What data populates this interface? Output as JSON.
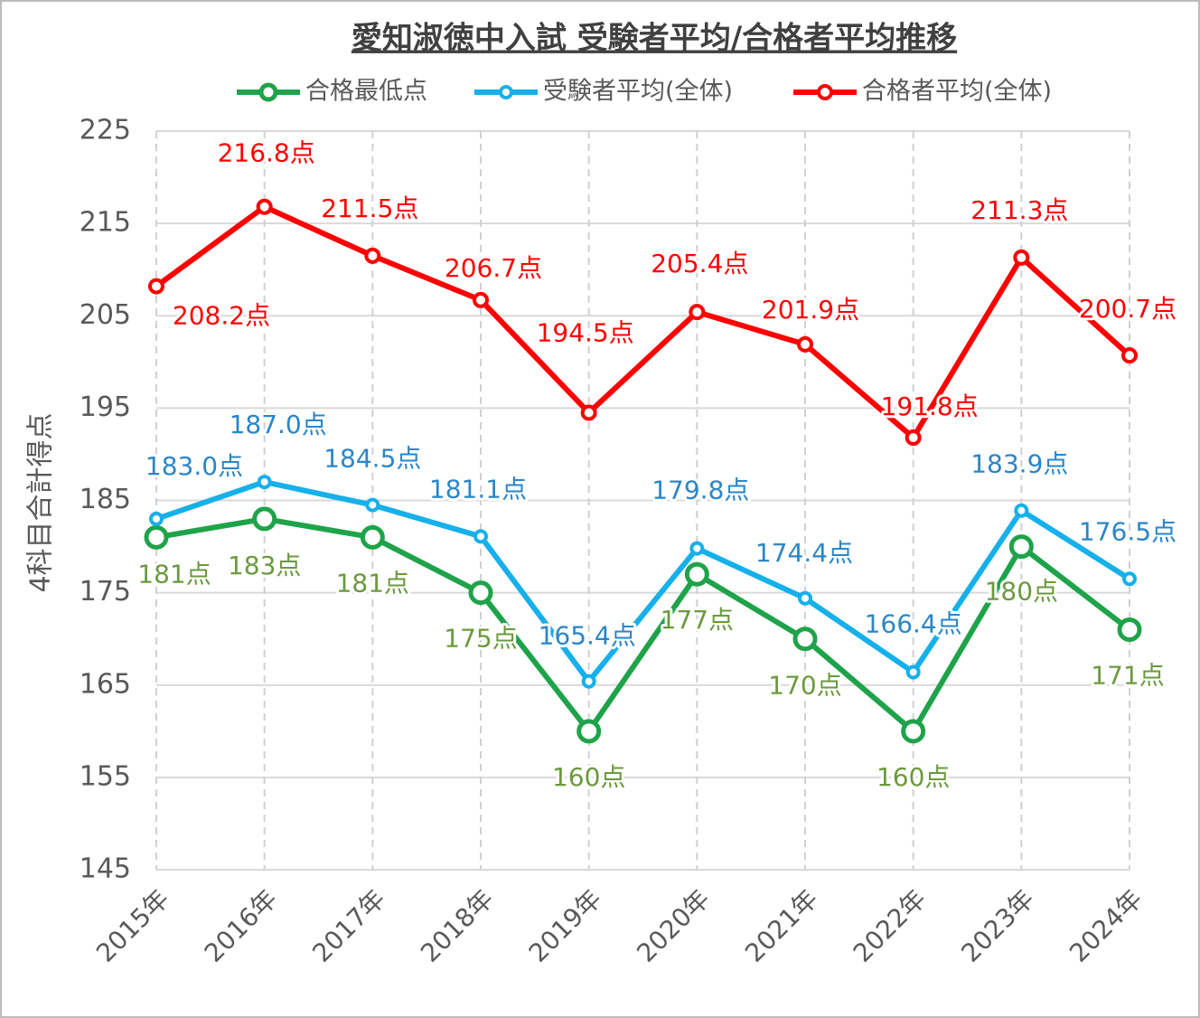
{
  "chart_data": {
    "type": "line",
    "title": "愛知淑徳中入試 受験者平均/合格者平均推移",
    "y_label": "4科目合計得点",
    "categories": [
      "2015年",
      "2016年",
      "2017年",
      "2018年",
      "2019年",
      "2020年",
      "2021年",
      "2022年",
      "2023年",
      "2024年"
    ],
    "ylim": [
      145,
      225
    ],
    "yticks": [
      145,
      155,
      165,
      175,
      185,
      195,
      205,
      215,
      225
    ],
    "grid": true,
    "legend": "top",
    "series": [
      {
        "name": "合格最低点",
        "color": "#1fa34a",
        "label_color": "#6b9a3e",
        "values": [
          181,
          183,
          181,
          175,
          160,
          177,
          170,
          160,
          180,
          171
        ],
        "value_labels": [
          "181点",
          "183点",
          "181点",
          "175点",
          "160点",
          "177点",
          "170点",
          "160点",
          "180点",
          "171点"
        ]
      },
      {
        "name": "受験者平均(全体)",
        "color": "#16b0ea",
        "label_color": "#2a86c8",
        "values": [
          183.0,
          187.0,
          184.5,
          181.1,
          165.4,
          179.8,
          174.4,
          166.4,
          183.9,
          176.5
        ],
        "value_labels": [
          "183.0点",
          "187.0点",
          "184.5点",
          "181.1点",
          "165.4点",
          "179.8点",
          "174.4点",
          "166.4点",
          "183.9点",
          "176.5点"
        ]
      },
      {
        "name": "合格者平均(全体)",
        "color": "#ff0000",
        "label_color": "#ff0000",
        "values": [
          208.2,
          216.8,
          211.5,
          206.7,
          194.5,
          205.4,
          201.9,
          191.8,
          211.3,
          200.7
        ],
        "value_labels": [
          "208.2点",
          "216.8点",
          "211.5点",
          "206.7点",
          "194.5点",
          "205.4点",
          "201.9点",
          "191.8点",
          "211.3点",
          "200.7点"
        ]
      }
    ]
  }
}
